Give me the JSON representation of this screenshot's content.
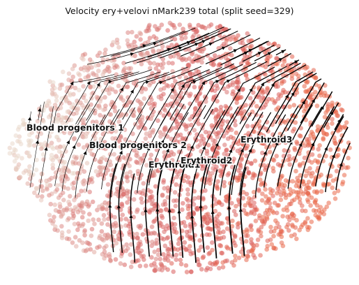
{
  "chart_data": {
    "type": "scatter",
    "title": "Velocity ery+velovi nMark239 total (split seed=329)",
    "xlabel": "",
    "ylabel": "",
    "axes_visible": false,
    "grid": false,
    "embedding": "UMAP with RNA velocity stream plot",
    "colormap": [
      "#ead9cc",
      "#dc8d88",
      "#d95f5f",
      "#e9694a"
    ],
    "clusters": [
      {
        "name": "Blood progenitors 1",
        "label": "Blood progenitors 1"
      },
      {
        "name": "Blood progenitors 2",
        "label": "Blood progenitors 2"
      },
      {
        "name": "Erythroid1",
        "label": "Erythroid1"
      },
      {
        "name": "Erythroid2",
        "label": "Erythroid2"
      },
      {
        "name": "Erythroid3",
        "label": "Erythroid3"
      }
    ],
    "streamlines": "black arrows flowing from progenitors (left) toward erythroid clusters (right)"
  }
}
